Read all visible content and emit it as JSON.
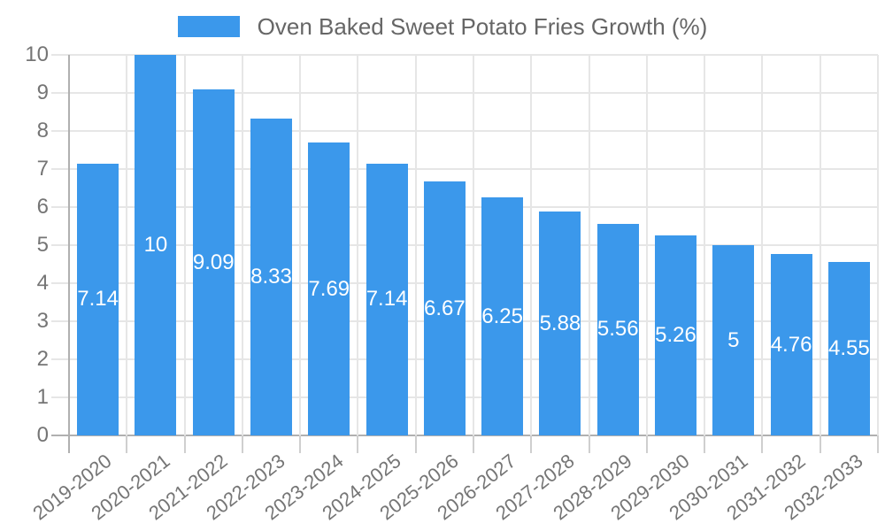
{
  "legend": {
    "label": "Oven Baked Sweet Potato Fries Growth (%)"
  },
  "chart_data": {
    "type": "bar",
    "title": "Oven Baked Sweet Potato Fries Growth (%)",
    "categories": [
      "2019-2020",
      "2020-2021",
      "2021-2022",
      "2022-2023",
      "2023-2024",
      "2024-2025",
      "2025-2026",
      "2026-2027",
      "2027-2028",
      "2028-2029",
      "2029-2030",
      "2030-2031",
      "2031-2032",
      "2032-2033"
    ],
    "values": [
      7.14,
      10,
      9.09,
      8.33,
      7.69,
      7.14,
      6.67,
      6.25,
      5.88,
      5.56,
      5.26,
      5,
      4.76,
      4.55
    ],
    "value_labels": [
      "7.14",
      "10",
      "9.09",
      "8.33",
      "7.69",
      "7.14",
      "6.67",
      "6.25",
      "5.88",
      "5.56",
      "5.26",
      "5",
      "4.76",
      "4.55"
    ],
    "xlabel": "",
    "ylabel": "",
    "ylim": [
      0,
      10
    ],
    "y_ticks": [
      0,
      1,
      2,
      3,
      4,
      5,
      6,
      7,
      8,
      9,
      10
    ],
    "grid": true,
    "legend_position": "top-center",
    "bar_color": "#3b98eb",
    "value_label_color": "#ffffff",
    "gridline_color": "#e6e6e6",
    "axis_color": "#b0b0b0",
    "tick_stub_color": "#cfcfcf",
    "tick_label_color": "#757575",
    "legend_text_color": "#666666"
  }
}
